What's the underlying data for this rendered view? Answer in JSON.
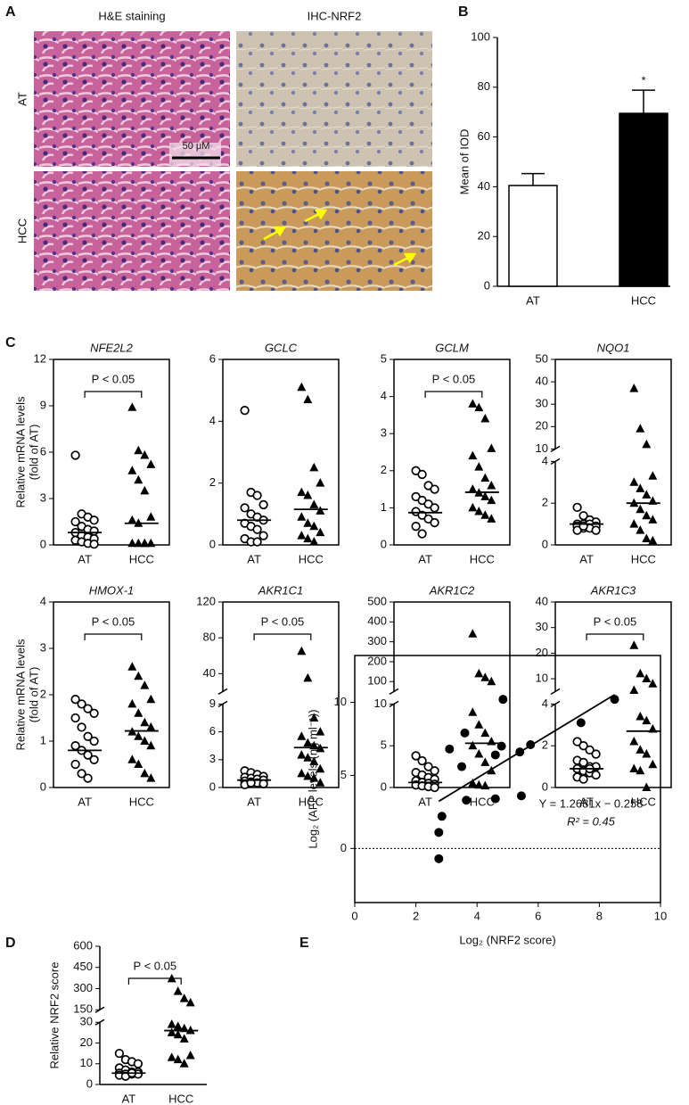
{
  "chart_data": [
    {
      "type": "micrograph",
      "label": "A",
      "column_titles": [
        "H&E staining",
        "IHC-NRF2"
      ],
      "row_labels": [
        "AT",
        "HCC"
      ],
      "scale_bar": "50 μM"
    },
    {
      "type": "bar",
      "label": "B",
      "categories": [
        "AT",
        "HCC"
      ],
      "values": [
        40.5,
        69.5
      ],
      "errors": [
        4.8,
        9.3
      ],
      "colors": [
        "#ffffff",
        "#000000"
      ],
      "ylabel": "Mean of IOD",
      "ylim": [
        0,
        100
      ],
      "yticks": [
        0,
        20,
        40,
        60,
        80,
        100
      ],
      "significance": "*"
    },
    {
      "type": "dot",
      "label": "C",
      "title": "NFE2L2",
      "ylabel": [
        "Relative mRNA levels",
        "(fold of AT)"
      ],
      "frame": true,
      "annotation": "P < 0.05",
      "series": [
        {
          "name": "AT",
          "marker": "circle-open",
          "values": [
            5.8,
            2.0,
            1.8,
            1.6,
            1.5,
            1.2,
            1.0,
            0.9,
            0.8,
            0.6,
            0.5,
            0.4,
            0.3,
            0.2,
            0.1,
            0.05
          ]
        },
        {
          "name": "HCC",
          "marker": "triangle",
          "values": [
            8.9,
            6.1,
            5.8,
            5.2,
            4.8,
            4.2,
            3.5,
            1.8,
            1.6,
            1.4,
            0.1,
            0.1,
            0.1,
            0.1,
            0.1
          ]
        }
      ],
      "medians": [
        0.8,
        1.4
      ],
      "segments": [
        {
          "ylim": [
            0,
            12
          ],
          "yticks": [
            0,
            3,
            6,
            9,
            12
          ]
        }
      ]
    },
    {
      "type": "dot",
      "title": "GCLC",
      "frame": true,
      "series": [
        {
          "name": "AT",
          "marker": "circle-open",
          "values": [
            4.35,
            1.7,
            1.6,
            1.3,
            1.2,
            1.0,
            0.9,
            0.8,
            0.7,
            0.6,
            0.5,
            0.3,
            0.2,
            0.1,
            0.1
          ]
        },
        {
          "name": "HCC",
          "marker": "triangle",
          "values": [
            5.1,
            4.7,
            2.5,
            2.0,
            1.7,
            1.6,
            1.3,
            1.1,
            0.9,
            0.7,
            0.6,
            0.4,
            0.3,
            0.2,
            0.1
          ]
        }
      ],
      "medians": [
        0.8,
        1.15
      ],
      "segments": [
        {
          "ylim": [
            0,
            6
          ],
          "yticks": [
            0,
            2,
            4,
            6
          ]
        }
      ]
    },
    {
      "type": "dot",
      "title": "GCLM",
      "frame": true,
      "annotation": "P < 0.05",
      "series": [
        {
          "name": "AT",
          "marker": "circle-open",
          "values": [
            2.0,
            1.9,
            1.6,
            1.5,
            1.3,
            1.2,
            1.1,
            1.0,
            0.9,
            0.8,
            0.7,
            0.6,
            0.5,
            0.3
          ]
        },
        {
          "name": "HCC",
          "marker": "triangle",
          "values": [
            3.8,
            3.7,
            3.4,
            2.6,
            2.4,
            2.1,
            1.8,
            1.6,
            1.5,
            1.4,
            1.3,
            1.2,
            1.0,
            0.9,
            0.8,
            0.7
          ]
        }
      ],
      "medians": [
        0.87,
        1.42
      ],
      "segments": [
        {
          "ylim": [
            0,
            5
          ],
          "yticks": [
            0,
            1,
            2,
            3,
            4,
            5
          ]
        }
      ]
    },
    {
      "type": "dot",
      "title": "NQO1",
      "frame": true,
      "series": [
        {
          "name": "AT",
          "marker": "circle-open",
          "values": [
            1.8,
            1.4,
            1.2,
            1.1,
            1.0,
            1.0,
            1.0,
            0.9,
            0.9,
            0.8,
            0.8,
            0.7,
            0.7,
            0.9
          ]
        },
        {
          "name": "HCC",
          "marker": "triangle",
          "values": [
            37,
            19,
            12,
            3.3,
            3.0,
            2.7,
            2.4,
            2.1,
            2.0,
            1.7,
            1.4,
            1.2,
            1.0,
            0.7,
            0.3,
            0.2
          ]
        }
      ],
      "medians": [
        1.0,
        2.0
      ],
      "segments": [
        {
          "ylim": [
            0,
            4
          ],
          "yticks": [
            0,
            2,
            4
          ]
        },
        {
          "ylim": [
            10,
            50
          ],
          "yticks": [
            10,
            20,
            30,
            40,
            50
          ]
        }
      ]
    },
    {
      "type": "dot",
      "title": "HMOX-1",
      "ylabel": [
        "Relative mRNA levels",
        "(fold of AT)"
      ],
      "frame": true,
      "annotation": "P < 0.05",
      "series": [
        {
          "name": "AT",
          "marker": "circle-open",
          "values": [
            1.9,
            1.8,
            1.7,
            1.6,
            1.5,
            1.3,
            1.1,
            1.0,
            0.9,
            0.8,
            0.7,
            0.6,
            0.5,
            0.3,
            0.2
          ]
        },
        {
          "name": "HCC",
          "marker": "triangle",
          "values": [
            2.6,
            2.4,
            2.2,
            1.9,
            1.8,
            1.6,
            1.4,
            1.3,
            1.2,
            1.1,
            1.0,
            0.9,
            0.6,
            0.5,
            0.3,
            0.2
          ]
        }
      ],
      "medians": [
        0.8,
        1.22
      ],
      "segments": [
        {
          "ylim": [
            0,
            4
          ],
          "yticks": [
            0,
            1,
            2,
            3,
            4
          ]
        }
      ]
    },
    {
      "type": "dot",
      "title": "AKR1C1",
      "frame": true,
      "annotation": "P < 0.05",
      "series": [
        {
          "name": "AT",
          "marker": "circle-open",
          "values": [
            1.8,
            1.6,
            1.4,
            1.2,
            1.1,
            1.0,
            0.9,
            0.8,
            0.7,
            0.6,
            0.5,
            0.4,
            0.3,
            0.5
          ]
        },
        {
          "name": "HCC",
          "marker": "triangle",
          "values": [
            65,
            35,
            7.5,
            6.0,
            5.5,
            4.8,
            4.5,
            4.2,
            3.5,
            3.2,
            2.8,
            2.0,
            1.5,
            1.2,
            1.0,
            0.5
          ]
        }
      ],
      "medians": [
        0.8,
        4.3
      ],
      "segments": [
        {
          "ylim": [
            0,
            9
          ],
          "yticks": [
            0,
            3,
            6,
            9
          ]
        },
        {
          "ylim": [
            20,
            120
          ],
          "yticks": [
            40,
            80,
            120
          ]
        }
      ]
    },
    {
      "type": "dot",
      "title": "AKR1C2",
      "frame": true,
      "series": [
        {
          "name": "AT",
          "marker": "circle-open",
          "values": [
            3.8,
            3.2,
            2.5,
            2.0,
            1.8,
            1.5,
            1.2,
            1.0,
            0.8,
            0.6,
            0.5,
            0.4,
            0.3,
            0.2,
            0.1,
            0.0
          ]
        },
        {
          "name": "HCC",
          "marker": "triangle",
          "values": [
            340,
            140,
            120,
            100,
            9.0,
            7.5,
            6.5,
            5.5,
            5.0,
            4.0,
            3.0,
            2.0,
            0.5,
            0.3,
            0.2
          ]
        }
      ],
      "medians": [
        0.6,
        5.3
      ],
      "segments": [
        {
          "ylim": [
            0,
            10
          ],
          "yticks": [
            0,
            5,
            10
          ]
        },
        {
          "ylim": [
            50,
            500
          ],
          "yticks": [
            100,
            200,
            300,
            400,
            500
          ]
        }
      ]
    },
    {
      "type": "dot",
      "title": "AKR1C3",
      "frame": true,
      "annotation": "P < 0.05",
      "series": [
        {
          "name": "AT",
          "marker": "circle-open",
          "values": [
            2.2,
            2.0,
            1.8,
            1.6,
            1.3,
            1.2,
            1.0,
            1.0,
            0.9,
            0.8,
            0.7,
            0.6,
            0.5,
            0.4,
            0.9
          ]
        },
        {
          "name": "HCC",
          "marker": "triangle",
          "values": [
            23,
            12,
            10,
            8,
            5.5,
            3.4,
            3.2,
            2.8,
            2.2,
            1.8,
            1.6,
            1.1,
            0.9,
            0.8,
            0.0
          ]
        }
      ],
      "medians": [
        0.9,
        2.7
      ],
      "segments": [
        {
          "ylim": [
            0,
            4
          ],
          "yticks": [
            0,
            2,
            4
          ]
        },
        {
          "ylim": [
            5,
            40
          ],
          "yticks": [
            10,
            20,
            30,
            40
          ]
        }
      ]
    },
    {
      "type": "dot",
      "label": "D",
      "ylabel": [
        "Relative NRF2 score"
      ],
      "frame": false,
      "annotation": "P < 0.05",
      "series": [
        {
          "name": "AT",
          "marker": "circle-open",
          "values": [
            15,
            12,
            11,
            10,
            8,
            7,
            6,
            6,
            5.5,
            5,
            5,
            5,
            4.5,
            4,
            5.5
          ]
        },
        {
          "name": "HCC",
          "marker": "triangle",
          "values": [
            370,
            280,
            230,
            200,
            29,
            28,
            27,
            26,
            25,
            24,
            22,
            14,
            13,
            12,
            10
          ]
        }
      ],
      "medians": [
        5.5,
        26
      ],
      "segments": [
        {
          "ylim": [
            0,
            30
          ],
          "yticks": [
            0,
            10,
            20,
            30
          ]
        },
        {
          "ylim": [
            150,
            600
          ],
          "yticks": [
            150,
            300,
            450,
            600
          ]
        }
      ]
    },
    {
      "type": "scatter",
      "label": "E",
      "xlabel": "Log₂ (NRF2 score)",
      "ylabel": "Log₂ (AFP levels (ng ml⁻¹))",
      "x": [
        2.75,
        2.75,
        2.85,
        3.1,
        3.5,
        3.6,
        3.65,
        4.6,
        4.6,
        4.8,
        4.85,
        5.4,
        5.45,
        5.75,
        7.4,
        8.5
      ],
      "y": [
        -0.7,
        1.1,
        2.2,
        6.8,
        5.6,
        7.9,
        3.3,
        6.4,
        3.4,
        7.0,
        10.2,
        6.6,
        3.6,
        7.1,
        8.6,
        10.2
      ],
      "fit": {
        "slope": 1.2681,
        "intercept": -0.258,
        "label": "Y = 1.2681x − 0.258"
      },
      "r2_label": "R² = 0.45",
      "reference_line": 0,
      "xlim": [
        0,
        10
      ],
      "xticks": [
        0,
        2,
        4,
        6,
        8,
        10
      ],
      "ylim": [
        -3.7,
        13.2
      ],
      "yticks": [
        0,
        5,
        10
      ]
    }
  ]
}
